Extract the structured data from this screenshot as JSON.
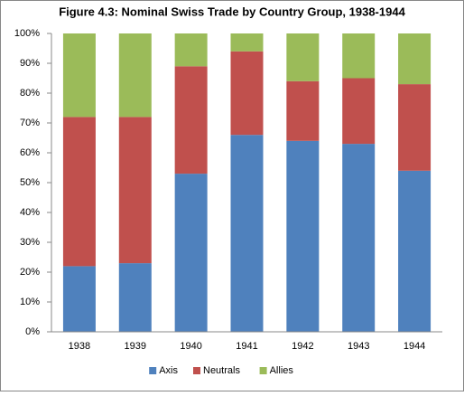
{
  "chart_data": {
    "type": "stacked_bar",
    "title": "Figure 4.3: Nominal Swiss Trade by Country Group, 1938-1944",
    "categories": [
      "1938",
      "1939",
      "1940",
      "1941",
      "1942",
      "1943",
      "1944"
    ],
    "series": [
      {
        "name": "Axis",
        "color": "#4f81bd",
        "values": [
          22,
          23,
          53,
          66,
          64,
          63,
          54
        ]
      },
      {
        "name": "Neutrals",
        "color": "#c0504d",
        "values": [
          50,
          49,
          36,
          28,
          20,
          22,
          29
        ]
      },
      {
        "name": "Allies",
        "color": "#9bbb59",
        "values": [
          28,
          28,
          11,
          6,
          16,
          15,
          17
        ]
      }
    ],
    "ylim": [
      0,
      100
    ],
    "yticks": [
      {
        "value": 0,
        "label": "0%"
      },
      {
        "value": 10,
        "label": "10%"
      },
      {
        "value": 20,
        "label": "20%"
      },
      {
        "value": 30,
        "label": "30%"
      },
      {
        "value": 40,
        "label": "40%"
      },
      {
        "value": 50,
        "label": "50%"
      },
      {
        "value": 60,
        "label": "60%"
      },
      {
        "value": 70,
        "label": "70%"
      },
      {
        "value": 80,
        "label": "80%"
      },
      {
        "value": 90,
        "label": "90%"
      },
      {
        "value": 100,
        "label": "100%"
      }
    ],
    "grid": false,
    "legend": "bottom"
  }
}
